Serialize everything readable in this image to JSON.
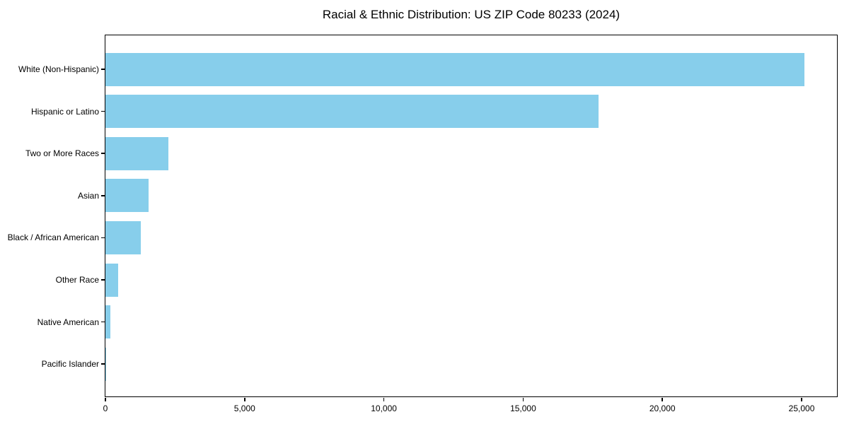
{
  "chart_data": {
    "type": "bar",
    "orientation": "horizontal",
    "title": "Racial & Ethnic Distribution: US ZIP Code 80233 (2024)",
    "categories": [
      "White (Non-Hispanic)",
      "Hispanic or Latino",
      "Two or More Races",
      "Asian",
      "Black / African American",
      "Other Race",
      "Native American",
      "Pacific Islander"
    ],
    "values": [
      25100,
      17700,
      2250,
      1540,
      1260,
      450,
      170,
      10
    ],
    "xlabel": "",
    "ylabel": "",
    "xlim": [
      0,
      26320
    ],
    "xticks": [
      0,
      5000,
      10000,
      15000,
      20000,
      25000
    ],
    "xtick_labels": [
      "0",
      "5,000",
      "10,000",
      "15,000",
      "20,000",
      "25,000"
    ],
    "bar_color": "#87CEEB",
    "text_color": "#000000",
    "axis_color": "#000000",
    "background_color": "#ffffff",
    "grid": false,
    "legend": null
  }
}
